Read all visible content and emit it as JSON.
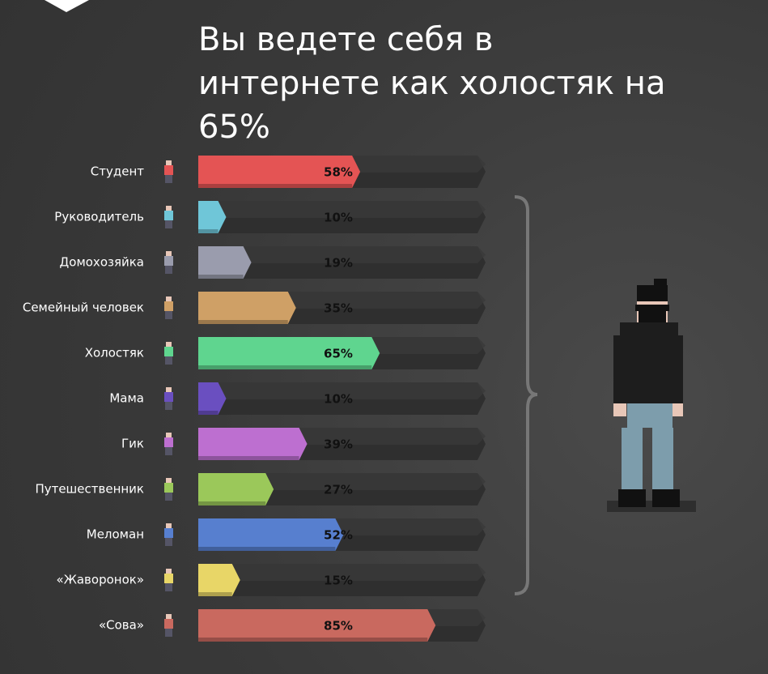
{
  "chart_data": {
    "type": "bar",
    "orientation": "horizontal",
    "title": "Вы ведете себя в интернете как холостяк на 65%",
    "categories": [
      "Студент",
      "Руководитель",
      "Домохозяйка",
      "Семейный человек",
      "Холостяк",
      "Мама",
      "Гик",
      "Путешественник",
      "Меломан",
      "«Жаворонок»",
      "«Сова»"
    ],
    "values": [
      58,
      10,
      19,
      35,
      65,
      10,
      39,
      27,
      52,
      15,
      85
    ],
    "value_labels": [
      "58%",
      "10%",
      "19%",
      "35%",
      "65%",
      "10%",
      "39%",
      "27%",
      "52%",
      "15%",
      "85%"
    ],
    "colors": [
      "#e45454",
      "#6fc6d8",
      "#9a9cad",
      "#cfa066",
      "#5fd58f",
      "#6a4fc0",
      "#bd6fd0",
      "#9bc85a",
      "#577fcf",
      "#e8d667",
      "#c9695f"
    ],
    "xlim": [
      0,
      100
    ]
  }
}
